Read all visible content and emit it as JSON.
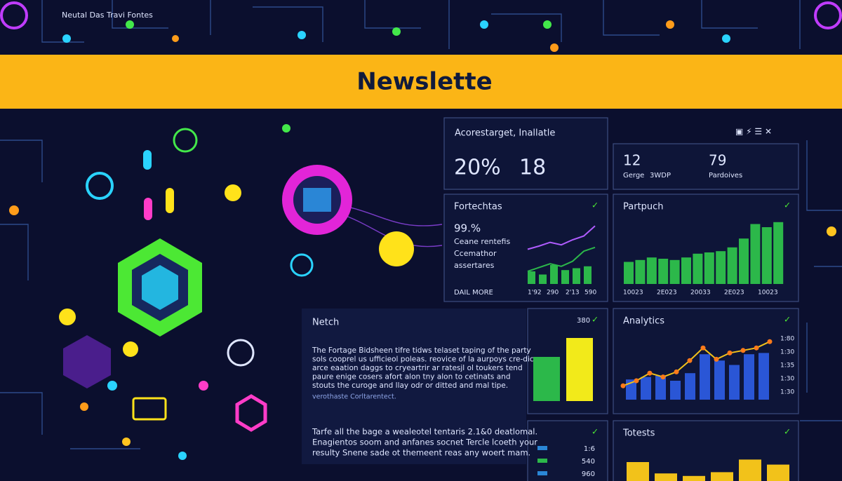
{
  "header": {
    "caption": "Neutal Das Travi Fontes"
  },
  "banner": {
    "title": "Newslette"
  },
  "summary": {
    "title": "Acorestarget, Inallatle",
    "stats": [
      "20%",
      "18"
    ]
  },
  "counters": {
    "items": [
      "12",
      "Gerge",
      "3WDP",
      "79",
      "Pardoives"
    ]
  },
  "fortechtas": {
    "title": "Fortechtas",
    "stat": "99.%",
    "lines": [
      "Ceane rentefis",
      "Ccemathor",
      "assertares"
    ],
    "link": "DAIL MORE",
    "xlabels": [
      "1'92",
      "290",
      "2'13",
      "590"
    ],
    "bars": [
      20,
      15,
      30,
      22,
      25,
      28
    ],
    "line_a": [
      55,
      60,
      66,
      62,
      70,
      76,
      92
    ],
    "line_b": [
      20,
      26,
      32,
      28,
      36,
      52,
      58
    ]
  },
  "partpuch": {
    "title": "Partpuch",
    "xlabels": [
      "10023",
      "2E023",
      "20033",
      "2E023",
      "10023"
    ],
    "bars": [
      35,
      38,
      42,
      40,
      38,
      42,
      48,
      50,
      52,
      58,
      72,
      95,
      90,
      98
    ]
  },
  "netch": {
    "title": "Netch",
    "paragraph": [
      "The Fortage Bidsheen tifre tidws telaset taping of the party",
      "sols cooprel us ufficieol poleas. reovice of la aurpoys cre-dic",
      "arce eaation daggs to cryeartrir ar ratesjl ol toukers tend",
      "paure enige cosers afort alon tny alon to cetinats and",
      "stouts the curoge and llay odr or ditted and mal tipe."
    ],
    "link": "verothaste Corltarentect.",
    "paragraph2": [
      "Tarfe all the bage a wealeotel tentaris 2.1&0 deatlomal.",
      "Enagientos soom and anfanes socnet Tercle lcoeth your",
      "resulty Snene sade ot themeent reas any woert mam."
    ]
  },
  "middle": {
    "label": "380",
    "bars": [
      70,
      100
    ]
  },
  "analytics": {
    "title": "Analytics",
    "ylabels": [
      "1:80",
      "1:30",
      "1:35",
      "1:30",
      "1:30"
    ],
    "bars": [
      32,
      36,
      38,
      30,
      42,
      72,
      62,
      55,
      72,
      74
    ],
    "line": [
      22,
      30,
      42,
      36,
      44,
      62,
      82,
      64,
      74,
      78,
      82,
      92
    ]
  },
  "totests": {
    "title": "Totests",
    "bars": [
      30,
      12,
      8,
      14,
      34,
      26
    ]
  },
  "list": {
    "values": [
      "1:6",
      "540",
      "960"
    ]
  }
}
